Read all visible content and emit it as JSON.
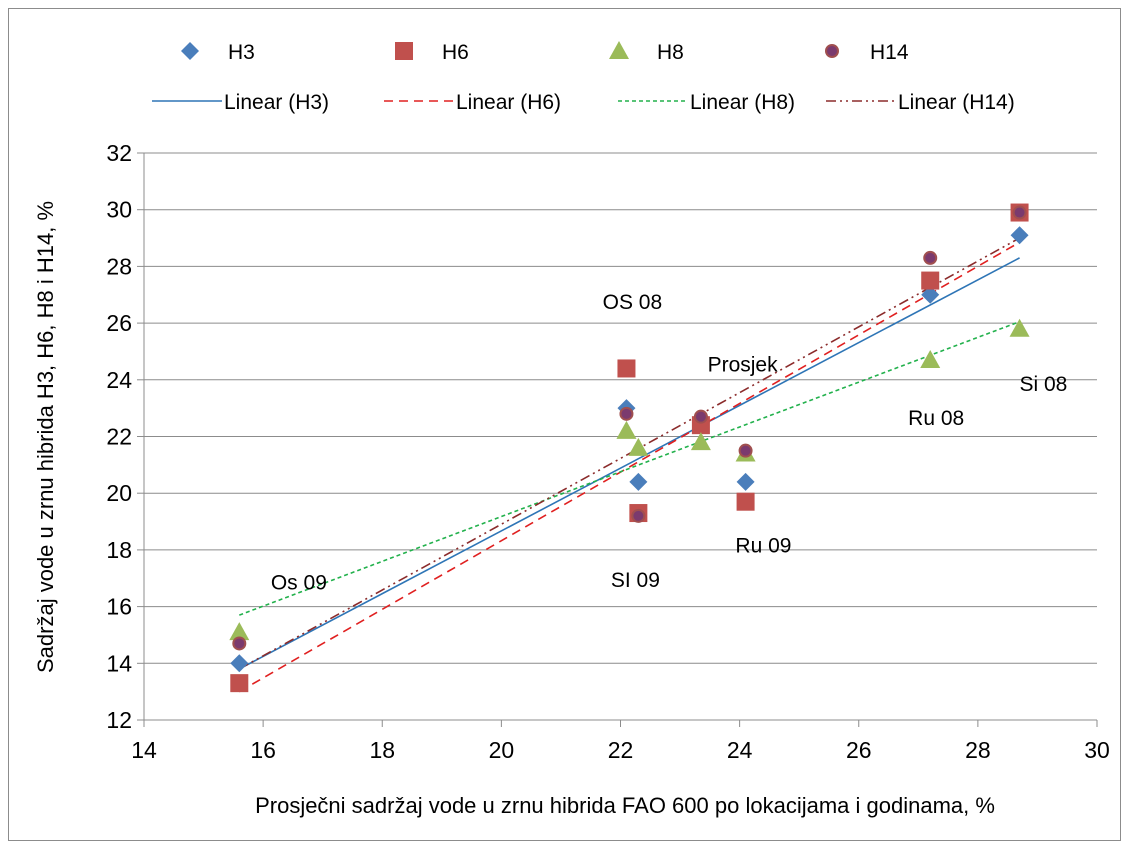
{
  "chart_data": {
    "type": "scatter",
    "title": "",
    "xlabel": "Prosječni sadržaj vode u zrnu hibrida FAO 600 po lokacijama i godinama, %",
    "ylabel": "Sadržaj vode u zrnu hibrida H3, H6, H8 i H14, %",
    "xlim": [
      14,
      30
    ],
    "ylim": [
      12,
      32
    ],
    "x_ticks": [
      "14",
      "16",
      "18",
      "20",
      "22",
      "24",
      "26",
      "28",
      "30"
    ],
    "y_ticks": [
      "12",
      "14",
      "16",
      "18",
      "20",
      "22",
      "24",
      "26",
      "28",
      "30",
      "32"
    ],
    "grid": "horizontal",
    "legend_position": "top",
    "series": [
      {
        "name": "H3",
        "marker": "diamond",
        "color": "#4a7ebb",
        "points": [
          [
            15.6,
            14.0
          ],
          [
            22.1,
            23.0
          ],
          [
            22.3,
            20.4
          ],
          [
            23.35,
            22.5
          ],
          [
            24.1,
            20.4
          ],
          [
            27.2,
            27.0
          ],
          [
            28.7,
            29.1
          ]
        ]
      },
      {
        "name": "H6",
        "marker": "square",
        "color": "#c0504d",
        "points": [
          [
            15.6,
            13.3
          ],
          [
            22.1,
            24.4
          ],
          [
            22.3,
            19.3
          ],
          [
            23.35,
            22.4
          ],
          [
            24.1,
            19.7
          ],
          [
            27.2,
            27.5
          ],
          [
            28.7,
            29.9
          ]
        ]
      },
      {
        "name": "H8",
        "marker": "triangle",
        "color": "#9bbb59",
        "points": [
          [
            15.6,
            15.1
          ],
          [
            22.1,
            22.2
          ],
          [
            22.3,
            21.6
          ],
          [
            23.35,
            21.8
          ],
          [
            24.1,
            21.4
          ],
          [
            27.2,
            24.7
          ],
          [
            28.7,
            25.8
          ]
        ]
      },
      {
        "name": "H14",
        "marker": "circle",
        "color": "#7b3a6e",
        "edge_color": "#a04f4f",
        "points": [
          [
            15.6,
            14.7
          ],
          [
            22.1,
            22.8
          ],
          [
            22.3,
            19.2
          ],
          [
            23.35,
            22.7
          ],
          [
            24.1,
            21.5
          ],
          [
            27.2,
            28.3
          ],
          [
            28.7,
            29.9
          ]
        ]
      }
    ],
    "trendlines": [
      {
        "name": "Linear (H3)",
        "style": "solid",
        "color": "#2e75b6",
        "x": [
          15.6,
          28.7
        ],
        "y": [
          13.8,
          28.3
        ]
      },
      {
        "name": "Linear (H6)",
        "style": "dashed",
        "color": "#e02020",
        "x": [
          15.6,
          28.7
        ],
        "y": [
          13.0,
          28.85
        ]
      },
      {
        "name": "Linear (H8)",
        "style": "dotted",
        "color": "#22b14c",
        "x": [
          15.6,
          28.7
        ],
        "y": [
          15.7,
          26.05
        ]
      },
      {
        "name": "Linear (H14)",
        "style": "dash-dot-dot",
        "color": "#8b2b2b",
        "x": [
          15.6,
          28.7
        ],
        "y": [
          13.8,
          29.0
        ]
      }
    ],
    "annotations": [
      {
        "text": "Os 09",
        "x": 16.6,
        "y": 16.6
      },
      {
        "text": "OS 08",
        "x": 22.2,
        "y": 26.5
      },
      {
        "text": "Prosjek",
        "x": 24.05,
        "y": 24.3
      },
      {
        "text": "Si 08",
        "x": 29.1,
        "y": 23.6
      },
      {
        "text": "Ru 08",
        "x": 27.3,
        "y": 22.4
      },
      {
        "text": "Ru 09",
        "x": 24.4,
        "y": 17.9
      },
      {
        "text": "SI 09",
        "x": 22.25,
        "y": 16.7
      }
    ]
  }
}
